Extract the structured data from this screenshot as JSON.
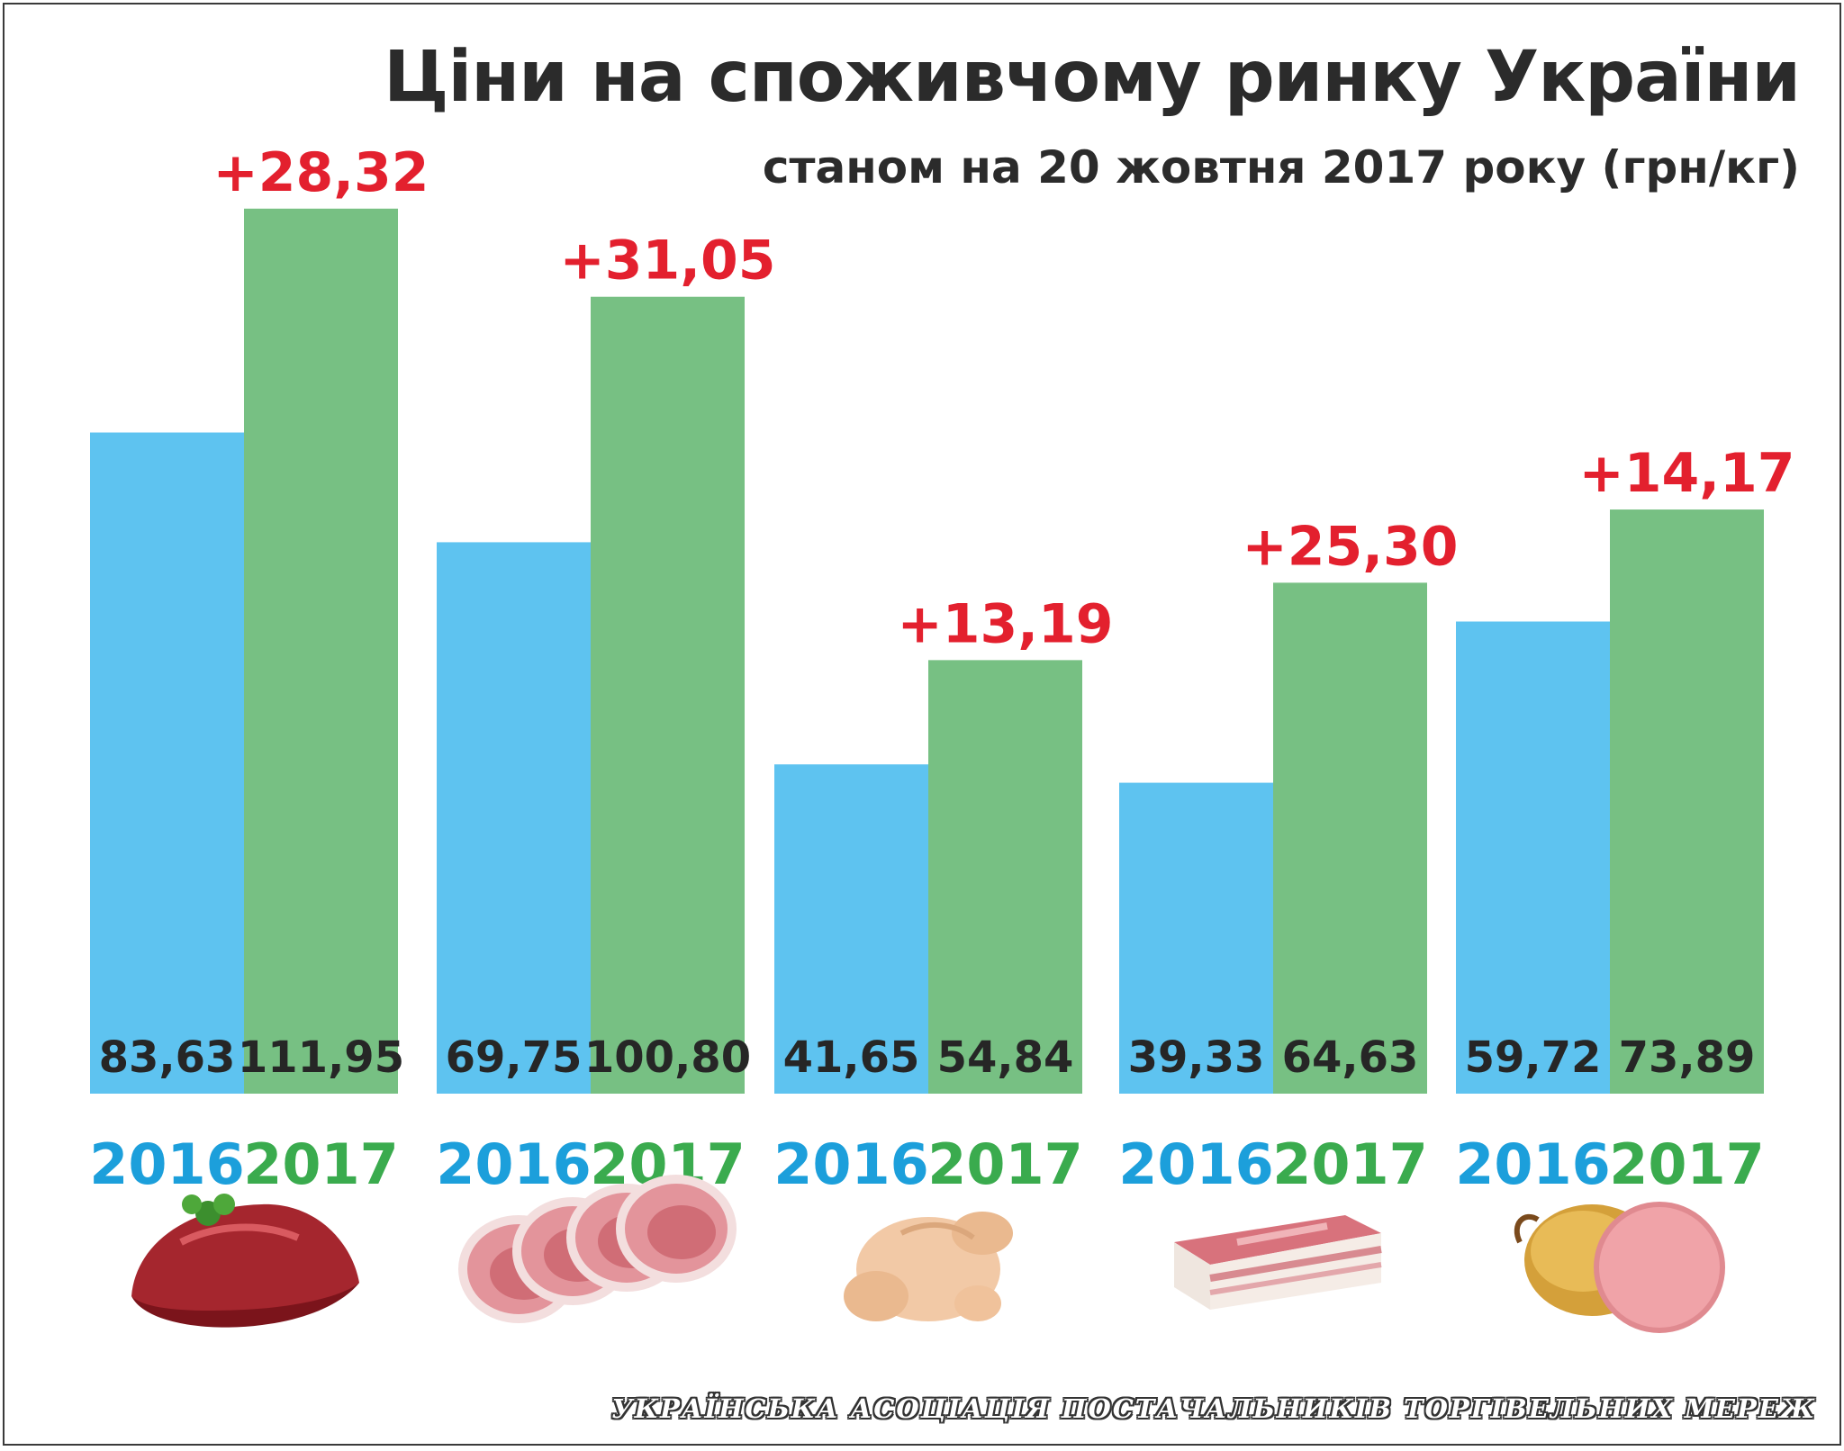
{
  "header": {
    "title": "Ціни на споживчому ринку України",
    "subtitle": "станом на 20 жовтня 2017 року (грн/кг)"
  },
  "chart_data": {
    "type": "bar",
    "categories": [
      "beef-icon",
      "pork-icon",
      "chicken-icon",
      "salo-icon",
      "sausage-icon"
    ],
    "series": [
      {
        "name": "2016",
        "color": "#5ec3f0",
        "label_color": "#1c9fdb",
        "values": [
          83.63,
          69.75,
          41.65,
          39.33,
          59.72
        ],
        "labels": [
          "83,63",
          "69,75",
          "41,65",
          "39,33",
          "59,72"
        ]
      },
      {
        "name": "2017",
        "color": "#77c083",
        "label_color": "#3aab4e",
        "values": [
          111.95,
          100.8,
          54.84,
          64.63,
          73.89
        ],
        "labels": [
          "111,95",
          "100,80",
          "54,84",
          "64,63",
          "73,89"
        ]
      }
    ],
    "differences": [
      "+28,32",
      "+31,05",
      "+13,19",
      "+25,30",
      "+14,17"
    ],
    "difference_color": "#e3202e",
    "value_label_color": "#262626",
    "ylim": [
      0,
      115
    ],
    "grid": false,
    "legend": "none"
  },
  "footer": {
    "credit": "Українська асоціація постачальників торгівельних мереж"
  }
}
